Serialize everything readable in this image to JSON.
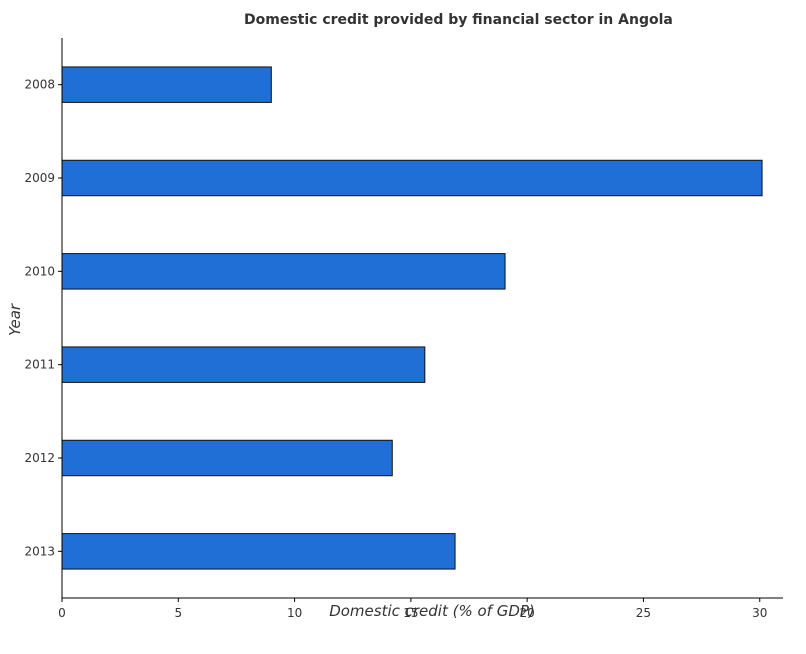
{
  "chart_data": {
    "type": "bar",
    "orientation": "horizontal",
    "title": "Domestic credit provided by financial sector in Angola",
    "xlabel": "Domestic credit (% of GDP)",
    "ylabel": "Year",
    "categories": [
      "2008",
      "2009",
      "2010",
      "2011",
      "2012",
      "2013"
    ],
    "values": [
      9.0,
      30.1,
      19.05,
      15.6,
      14.2,
      16.9
    ],
    "xlim": [
      0,
      31
    ],
    "xticks": [
      0,
      5,
      10,
      15,
      20,
      25,
      30
    ],
    "xtick_labels": [
      "0",
      "5",
      "10",
      "15",
      "20",
      "25",
      "30"
    ],
    "bar_color": "#1f6fd6",
    "grid": false,
    "legend": "none"
  }
}
